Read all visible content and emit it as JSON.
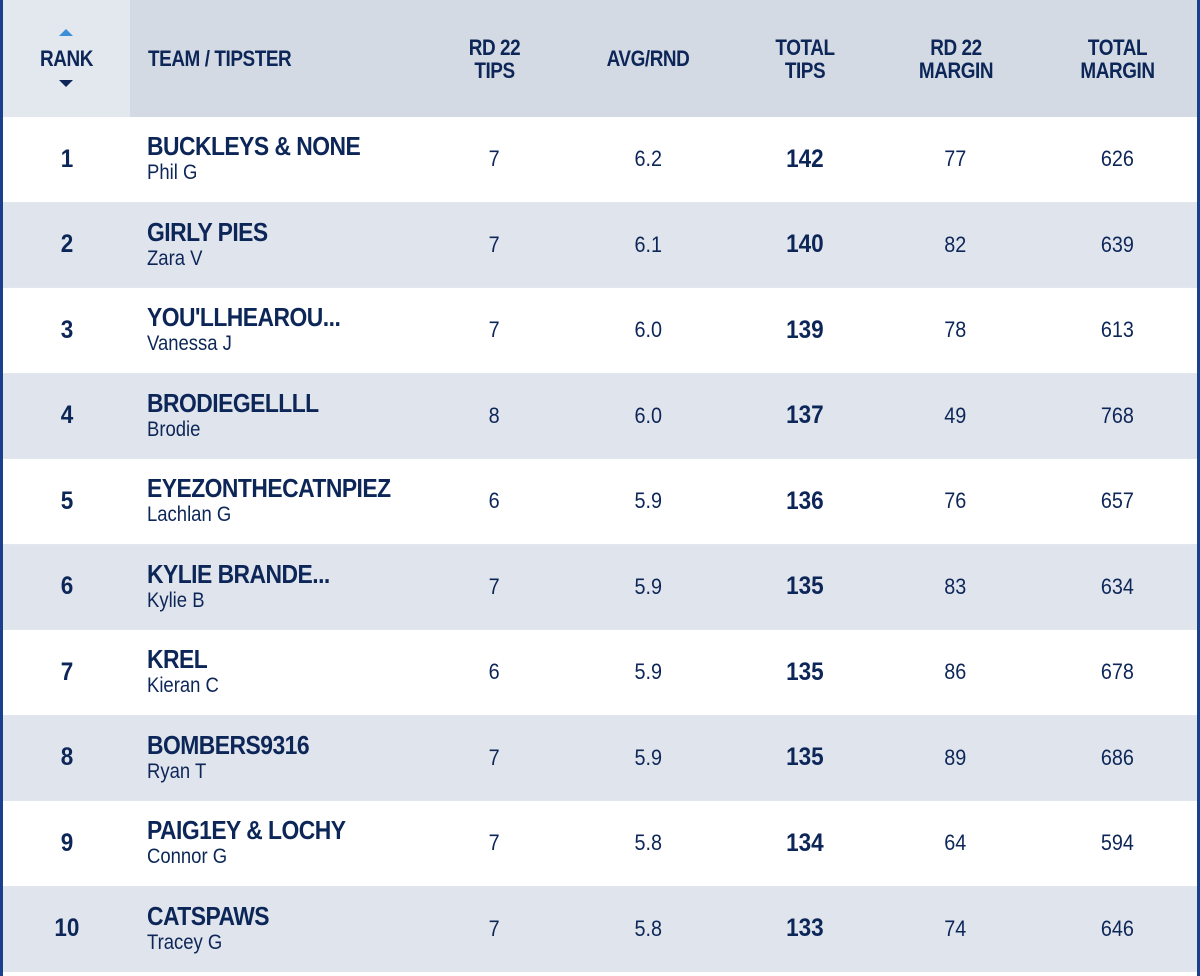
{
  "header": {
    "rank": "RANK",
    "team_tipster": "TEAM / TIPSTER",
    "rd_tips": "RD 22\nTIPS",
    "avg_rnd": "AVG/RND",
    "total_tips": "TOTAL\nTIPS",
    "rd_margin": "RD 22\nMARGIN",
    "total_margin": "TOTAL\nMARGIN"
  },
  "icons": {
    "sort_up": "sort-ascending-icon",
    "sort_down": "sort-descending-icon"
  },
  "colors": {
    "header_bg": "#d4dae4",
    "alt_row": "#e0e4ed",
    "text": "#0d2658",
    "accent": "#3a8fd8"
  },
  "rows": [
    {
      "rank": "1",
      "team": "BUCKLEYS & NONE",
      "tipster": "Phil G",
      "rd_tips": "7",
      "avg": "6.2",
      "total_tips": "142",
      "rd_margin": "77",
      "total_margin": "626"
    },
    {
      "rank": "2",
      "team": "GIRLY PIES",
      "tipster": "Zara V",
      "rd_tips": "7",
      "avg": "6.1",
      "total_tips": "140",
      "rd_margin": "82",
      "total_margin": "639"
    },
    {
      "rank": "3",
      "team": "YOU'LLHEAROU...",
      "tipster": "Vanessa J",
      "rd_tips": "7",
      "avg": "6.0",
      "total_tips": "139",
      "rd_margin": "78",
      "total_margin": "613"
    },
    {
      "rank": "4",
      "team": "BRODIEGELLLL",
      "tipster": "Brodie",
      "rd_tips": "8",
      "avg": "6.0",
      "total_tips": "137",
      "rd_margin": "49",
      "total_margin": "768"
    },
    {
      "rank": "5",
      "team": "EYEZONTHECATNPIEZ",
      "tipster": "Lachlan G",
      "rd_tips": "6",
      "avg": "5.9",
      "total_tips": "136",
      "rd_margin": "76",
      "total_margin": "657"
    },
    {
      "rank": "6",
      "team": "KYLIE BRANDE...",
      "tipster": "Kylie B",
      "rd_tips": "7",
      "avg": "5.9",
      "total_tips": "135",
      "rd_margin": "83",
      "total_margin": "634"
    },
    {
      "rank": "7",
      "team": "KREL",
      "tipster": "Kieran C",
      "rd_tips": "6",
      "avg": "5.9",
      "total_tips": "135",
      "rd_margin": "86",
      "total_margin": "678"
    },
    {
      "rank": "8",
      "team": "BOMBERS9316",
      "tipster": "Ryan T",
      "rd_tips": "7",
      "avg": "5.9",
      "total_tips": "135",
      "rd_margin": "89",
      "total_margin": "686"
    },
    {
      "rank": "9",
      "team": "PAIG1EY & LOCHY",
      "tipster": "Connor G",
      "rd_tips": "7",
      "avg": "5.8",
      "total_tips": "134",
      "rd_margin": "64",
      "total_margin": "594"
    },
    {
      "rank": "10",
      "team": "CATSPAWS",
      "tipster": "Tracey G",
      "rd_tips": "7",
      "avg": "5.8",
      "total_tips": "133",
      "rd_margin": "74",
      "total_margin": "646"
    }
  ]
}
